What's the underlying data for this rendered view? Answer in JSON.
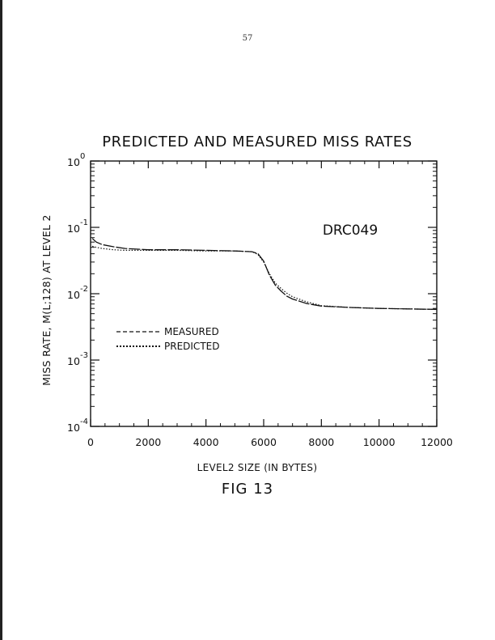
{
  "page": {
    "number": "57",
    "caption": "FIG 13"
  },
  "chart_data": {
    "type": "line",
    "title": "PREDICTED AND MEASURED MISS RATES",
    "xlabel": "LEVEL2 SIZE (IN BYTES)",
    "ylabel": "MISS RATE, M(L;128) AT LEVEL 2",
    "annotation": "DRC049",
    "x_scale": "linear",
    "y_scale": "log",
    "xlim": [
      0,
      12000
    ],
    "ylim": [
      0.0001,
      1
    ],
    "x_ticks": [
      0,
      2000,
      4000,
      6000,
      8000,
      10000,
      12000
    ],
    "x_tick_labels": [
      "0",
      "2000",
      "4000",
      "6000",
      "8000",
      "10000",
      "12000"
    ],
    "y_ticks": [
      {
        "value": 1,
        "base": "10",
        "exponent": "0"
      },
      {
        "value": 0.1,
        "base": "10",
        "exponent": "-1"
      },
      {
        "value": 0.01,
        "base": "10",
        "exponent": "-2"
      },
      {
        "value": 0.001,
        "base": "10",
        "exponent": "-3"
      },
      {
        "value": 0.0001,
        "base": "10",
        "exponent": "-4"
      }
    ],
    "grid": false,
    "legend_position": "lower-left",
    "series": [
      {
        "name": "MEASURED",
        "style": "dashed",
        "x": [
          60,
          200,
          400,
          800,
          1200,
          2000,
          3000,
          4000,
          5000,
          5600,
          5800,
          6000,
          6200,
          6400,
          6600,
          6800,
          7000,
          7500,
          8000,
          9000,
          10000,
          11000,
          12000
        ],
        "y": [
          0.068,
          0.06,
          0.055,
          0.051,
          0.048,
          0.046,
          0.046,
          0.045,
          0.044,
          0.043,
          0.04,
          0.031,
          0.019,
          0.0135,
          0.011,
          0.0092,
          0.0083,
          0.0071,
          0.0065,
          0.0062,
          0.006,
          0.0059,
          0.0058
        ]
      },
      {
        "name": "PREDICTED",
        "style": "dotted",
        "x": [
          60,
          200,
          400,
          800,
          1200,
          2000,
          3000,
          4000,
          5000,
          5600,
          5800,
          6000,
          6200,
          6400,
          6600,
          6800,
          7000,
          7500,
          8000,
          9000,
          10000,
          11000,
          12000
        ],
        "y": [
          0.052,
          0.05,
          0.048,
          0.046,
          0.045,
          0.045,
          0.045,
          0.044,
          0.044,
          0.043,
          0.039,
          0.03,
          0.02,
          0.0145,
          0.012,
          0.0102,
          0.009,
          0.0075,
          0.0066,
          0.0062,
          0.006,
          0.0059,
          0.0058
        ]
      }
    ]
  }
}
